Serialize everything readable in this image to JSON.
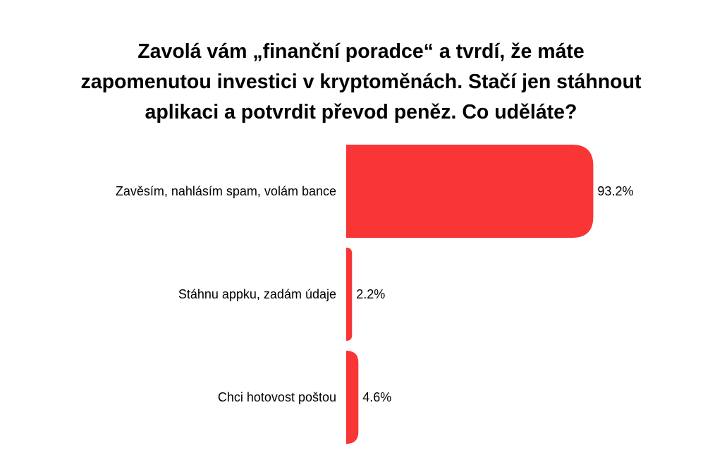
{
  "chart_data": {
    "type": "bar",
    "orientation": "horizontal",
    "title_lines": [
      "Zavolá vám „finanční poradce“ a tvrdí, že máte",
      "zapomenutou investici v kryptoměnách. Stačí jen stáhnout",
      "aplikaci a potvrdit převod peněz. Co uděláte?"
    ],
    "categories": [
      "Zavěsím, nahlásím spam, volám bance",
      "Stáhnu appku, zadám údaje",
      "Chci hotovost poštou"
    ],
    "values": [
      93.2,
      2.2,
      4.6
    ],
    "value_labels": [
      "93.2%",
      "2.2%",
      "4.6%"
    ],
    "xlim": [
      0,
      100
    ],
    "bar_color": "#f93535",
    "grid": false,
    "legend": "none"
  }
}
